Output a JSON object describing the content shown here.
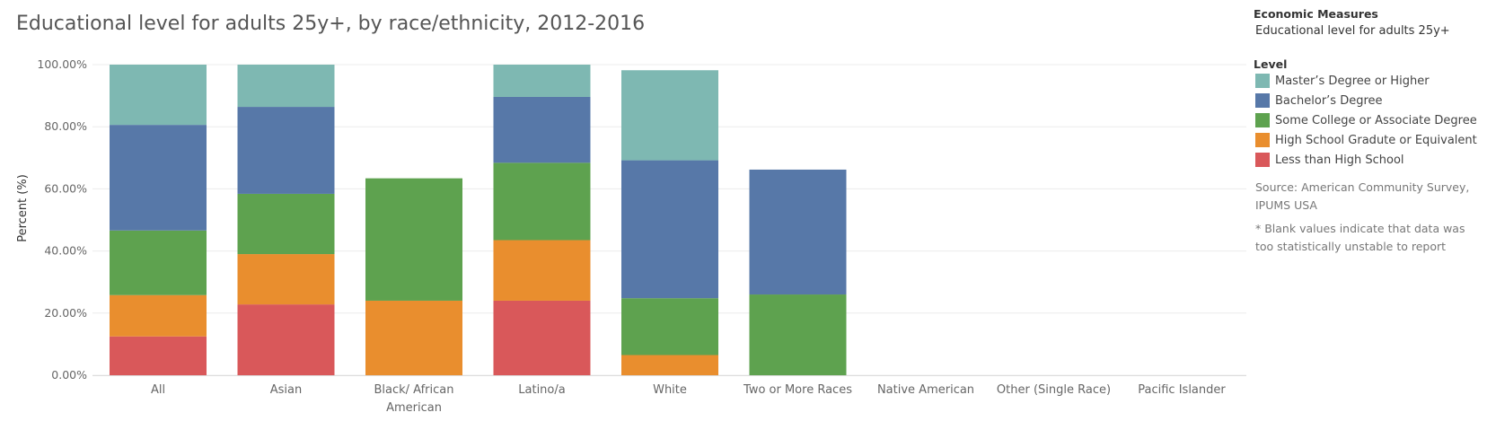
{
  "header": {
    "title": "Educational level for adults 25y+, by race/ethnicity, 2012-2016"
  },
  "legend": {
    "measure_heading": "Economic Measures",
    "measure_value": "Educational level for adults 25y+",
    "level_heading": "Level",
    "source": "Source: American Community Survey, IPUMS USA",
    "note": "* Blank values indicate that data was too statistically unstable to report"
  },
  "chart_data": {
    "type": "bar",
    "stacked": true,
    "title": "Educational level for adults 25y+, by race/ethnicity, 2012-2016",
    "xlabel": "",
    "ylabel": "Percent (%)",
    "ylim": [
      0,
      100
    ],
    "yticks": [
      "0.00%",
      "20.00%",
      "40.00%",
      "60.00%",
      "80.00%",
      "100.00%"
    ],
    "grid": true,
    "legend_position": "right",
    "categories": [
      "All",
      "Asian",
      "Black/ African American",
      "Latino/a",
      "White",
      "Two or More Races",
      "Native American",
      "Other (Single Race)",
      "Pacific Islander"
    ],
    "category_lines": [
      [
        "All"
      ],
      [
        "Asian"
      ],
      [
        "Black/ African",
        "American"
      ],
      [
        "Latino/a"
      ],
      [
        "White"
      ],
      [
        "Two or More Races"
      ],
      [
        "Native American"
      ],
      [
        "Other (Single Race)"
      ],
      [
        "Pacific Islander"
      ]
    ],
    "series": [
      {
        "name": "Less than High School",
        "color": "#d9585a",
        "values": [
          12.5,
          22.8,
          null,
          24.0,
          null,
          null,
          null,
          null,
          null
        ]
      },
      {
        "name": "High School Gradute or Equivalent",
        "color": "#e98e2e",
        "values": [
          13.3,
          16.2,
          24.0,
          19.5,
          6.5,
          null,
          null,
          null,
          null
        ]
      },
      {
        "name": "Some College or Associate Degree",
        "color": "#5ea24f",
        "values": [
          20.8,
          19.4,
          39.4,
          24.9,
          18.3,
          26.0,
          null,
          null,
          null
        ]
      },
      {
        "name": "Bachelor’s Degree",
        "color": "#5778a8",
        "values": [
          34.0,
          28.0,
          null,
          21.2,
          44.4,
          40.2,
          null,
          null,
          null
        ]
      },
      {
        "name": "Master’s Degree or Higher",
        "color": "#7eb8b2",
        "values": [
          19.4,
          13.6,
          null,
          10.4,
          29.0,
          null,
          null,
          null,
          null
        ]
      }
    ],
    "legend_order": [
      4,
      3,
      2,
      1,
      0
    ]
  }
}
